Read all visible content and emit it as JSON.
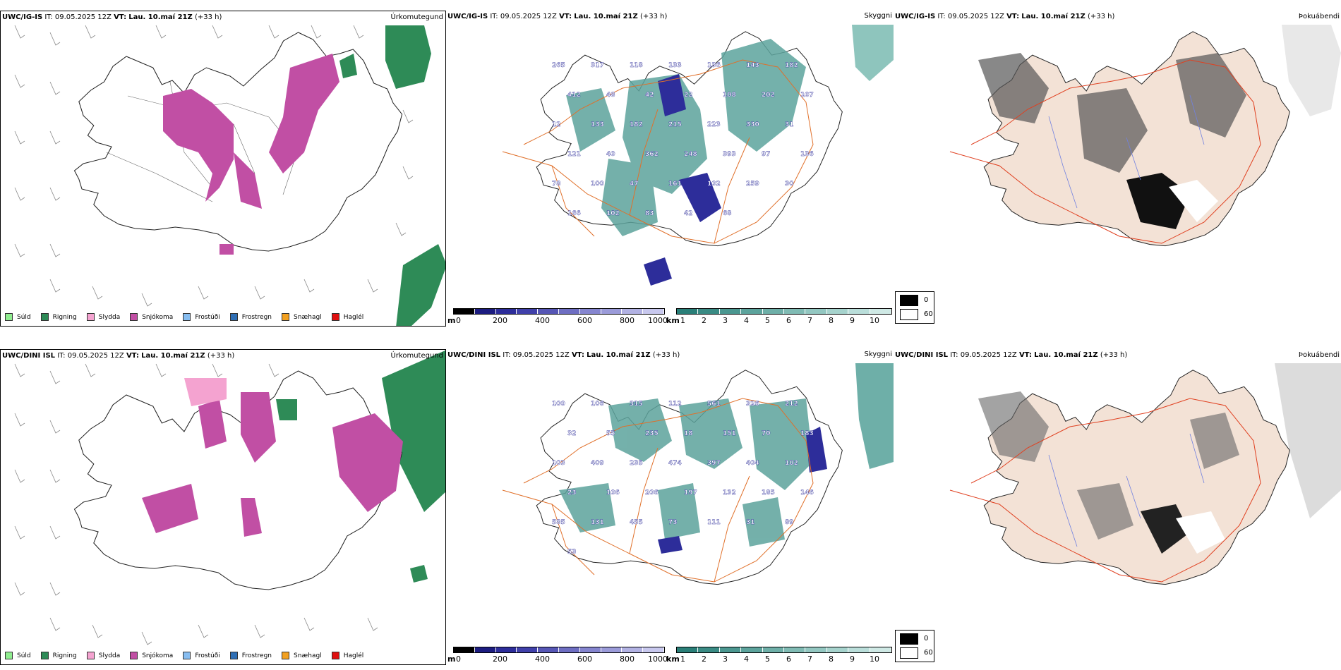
{
  "rows": [
    {
      "model": "UWC/IG-IS",
      "it_label": "IT:",
      "it_value": "09.05.2025 12Z",
      "vt_label": "VT:",
      "vt_value": "Lau. 10.maí 21Z",
      "lead": "(+33 h)",
      "titles": {
        "precip": "Úrkomutegund",
        "vis": "Skyggni",
        "fog": "Þokuábendi"
      },
      "vis_labels": [
        "265",
        "317",
        "118",
        "133",
        "136",
        "143",
        "182",
        "412",
        "48",
        "42",
        "22",
        "108",
        "202",
        "107",
        "12",
        "133",
        "182",
        "215",
        "223",
        "330",
        "31",
        "121",
        "40",
        "362",
        "248",
        "393",
        "97",
        "136",
        "78",
        "100",
        "47",
        "161",
        "102",
        "259",
        "30",
        "166",
        "102",
        "83",
        "42",
        "68"
      ]
    },
    {
      "model": "UWC/DINI ISL",
      "it_label": "IT:",
      "it_value": "09.05.2025 12Z",
      "vt_label": "VT:",
      "vt_value": "Lau. 10.maí 21Z",
      "lead": "(+33 h)",
      "titles": {
        "precip": "Úrkomutegund",
        "vis": "Skyggni",
        "fog": "Þokuábendi"
      },
      "vis_labels": [
        "100",
        "106",
        "315",
        "112",
        "561",
        "326",
        "212",
        "32",
        "55",
        "235",
        "18",
        "151",
        "70",
        "183",
        "103",
        "409",
        "235",
        "474",
        "397",
        "404",
        "102",
        "23",
        "106",
        "206",
        "197",
        "132",
        "185",
        "146",
        "585",
        "131",
        "455",
        "73",
        "111",
        "31",
        "89",
        "53"
      ]
    }
  ],
  "precip_legend": [
    {
      "label": "Súld",
      "color": "#90ee90"
    },
    {
      "label": "Rigning",
      "color": "#2e8b57"
    },
    {
      "label": "Slydda",
      "color": "#f4a3d0"
    },
    {
      "label": "Snjókoma",
      "color": "#c14fa4"
    },
    {
      "label": "Frostúði",
      "color": "#87bdf0"
    },
    {
      "label": "Frostregn",
      "color": "#2f6fb5"
    },
    {
      "label": "Snæhagl",
      "color": "#f2a020"
    },
    {
      "label": "Haglél",
      "color": "#e01010"
    }
  ],
  "vis_colorbar": {
    "unit_m": "m",
    "ticks_m": [
      "0",
      "200",
      "400",
      "600",
      "800",
      "1000"
    ],
    "colors_m": [
      "#000000",
      "#1c1c80",
      "#2d2d9a",
      "#4040aa",
      "#5656b5",
      "#6e6ec2",
      "#8585cf",
      "#9b9bd9",
      "#b2b2e3",
      "#c8c8ee"
    ],
    "unit_km": "km",
    "ticks_km": [
      "1",
      "2",
      "3",
      "4",
      "5",
      "6",
      "7",
      "8",
      "9",
      "10"
    ],
    "colors_km": [
      "#2a7f78",
      "#3a8b84",
      "#4b9790",
      "#5ca39c",
      "#6eafa8",
      "#80bbb4",
      "#93c7c1",
      "#a6d3cd",
      "#bad ed9",
      "#cfe9e5"
    ]
  },
  "fog_key": [
    "0",
    "60"
  ],
  "colors": {
    "snow": "#c14fa4",
    "rain": "#2e8b57",
    "vis_dark": "#1c1c80",
    "vis_teal": "#5ca39c",
    "land_fog": "#f3e2d6",
    "roads": "#e0702a"
  }
}
